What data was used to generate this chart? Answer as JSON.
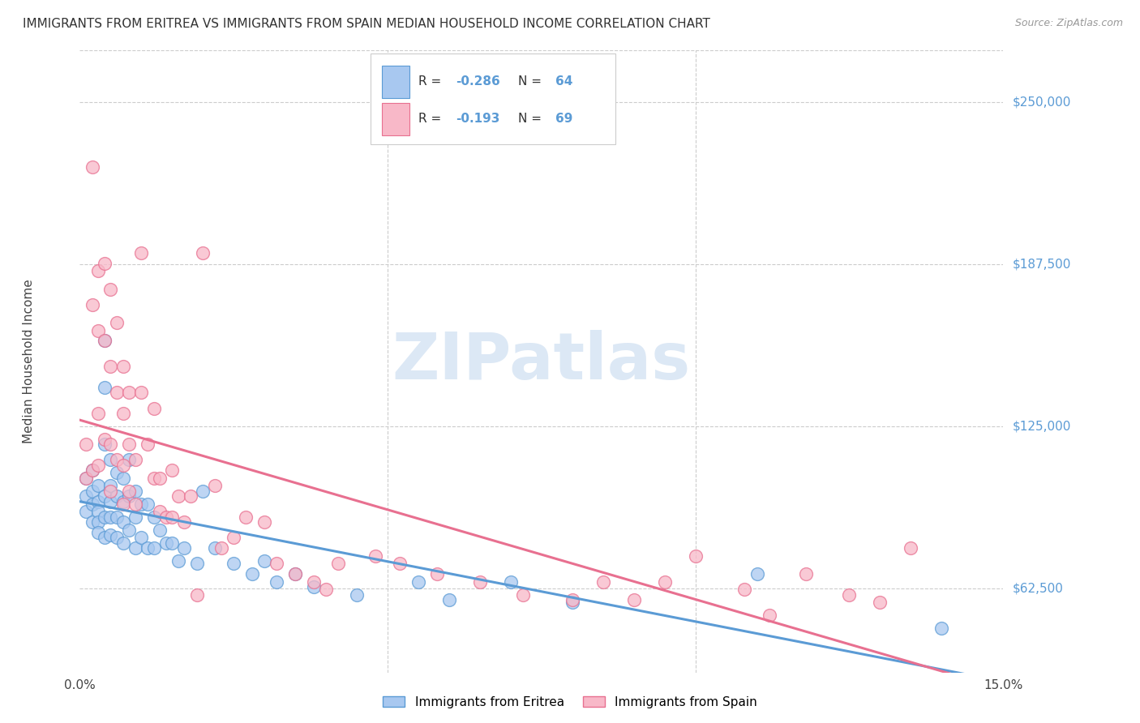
{
  "title": "IMMIGRANTS FROM ERITREA VS IMMIGRANTS FROM SPAIN MEDIAN HOUSEHOLD INCOME CORRELATION CHART",
  "source": "Source: ZipAtlas.com",
  "ylabel": "Median Household Income",
  "yticks": [
    62500,
    125000,
    187500,
    250000
  ],
  "ytick_labels": [
    "$62,500",
    "$125,000",
    "$187,500",
    "$250,000"
  ],
  "xlim": [
    0.0,
    0.15
  ],
  "ylim": [
    30000,
    270000
  ],
  "color_eritrea_fill": "#a8c8f0",
  "color_eritrea_edge": "#5b9bd5",
  "color_eritrea_line": "#5b9bd5",
  "color_spain_fill": "#f8b8c8",
  "color_spain_edge": "#e87090",
  "color_spain_line": "#e87090",
  "color_blue_text": "#5b9bd5",
  "color_grid": "#cccccc",
  "watermark_color": "#dce8f5",
  "eritrea_x": [
    0.001,
    0.001,
    0.001,
    0.002,
    0.002,
    0.002,
    0.002,
    0.003,
    0.003,
    0.003,
    0.003,
    0.003,
    0.004,
    0.004,
    0.004,
    0.004,
    0.004,
    0.004,
    0.005,
    0.005,
    0.005,
    0.005,
    0.005,
    0.006,
    0.006,
    0.006,
    0.006,
    0.007,
    0.007,
    0.007,
    0.007,
    0.008,
    0.008,
    0.008,
    0.009,
    0.009,
    0.009,
    0.01,
    0.01,
    0.011,
    0.011,
    0.012,
    0.012,
    0.013,
    0.014,
    0.015,
    0.016,
    0.017,
    0.019,
    0.02,
    0.022,
    0.025,
    0.028,
    0.03,
    0.032,
    0.035,
    0.038,
    0.045,
    0.055,
    0.06,
    0.07,
    0.08,
    0.11,
    0.14
  ],
  "eritrea_y": [
    105000,
    98000,
    92000,
    108000,
    100000,
    95000,
    88000,
    102000,
    96000,
    92000,
    88000,
    84000,
    158000,
    140000,
    118000,
    98000,
    90000,
    82000,
    112000,
    102000,
    96000,
    90000,
    83000,
    107000,
    98000,
    90000,
    82000,
    105000,
    96000,
    88000,
    80000,
    112000,
    98000,
    85000,
    100000,
    90000,
    78000,
    95000,
    82000,
    95000,
    78000,
    90000,
    78000,
    85000,
    80000,
    80000,
    73000,
    78000,
    72000,
    100000,
    78000,
    72000,
    68000,
    73000,
    65000,
    68000,
    63000,
    60000,
    65000,
    58000,
    65000,
    57000,
    68000,
    47000
  ],
  "spain_x": [
    0.001,
    0.001,
    0.002,
    0.002,
    0.002,
    0.003,
    0.003,
    0.003,
    0.003,
    0.004,
    0.004,
    0.004,
    0.005,
    0.005,
    0.005,
    0.005,
    0.006,
    0.006,
    0.006,
    0.007,
    0.007,
    0.007,
    0.007,
    0.008,
    0.008,
    0.008,
    0.009,
    0.009,
    0.01,
    0.01,
    0.011,
    0.012,
    0.012,
    0.013,
    0.013,
    0.014,
    0.015,
    0.015,
    0.016,
    0.017,
    0.018,
    0.019,
    0.02,
    0.022,
    0.023,
    0.025,
    0.027,
    0.03,
    0.032,
    0.035,
    0.038,
    0.04,
    0.042,
    0.048,
    0.052,
    0.058,
    0.065,
    0.072,
    0.08,
    0.085,
    0.09,
    0.095,
    0.1,
    0.108,
    0.112,
    0.118,
    0.125,
    0.13,
    0.135
  ],
  "spain_y": [
    118000,
    105000,
    225000,
    172000,
    108000,
    185000,
    162000,
    130000,
    110000,
    188000,
    158000,
    120000,
    178000,
    148000,
    118000,
    100000,
    165000,
    138000,
    112000,
    148000,
    130000,
    110000,
    95000,
    138000,
    118000,
    100000,
    112000,
    95000,
    192000,
    138000,
    118000,
    132000,
    105000,
    105000,
    92000,
    90000,
    108000,
    90000,
    98000,
    88000,
    98000,
    60000,
    192000,
    102000,
    78000,
    82000,
    90000,
    88000,
    72000,
    68000,
    65000,
    62000,
    72000,
    75000,
    72000,
    68000,
    65000,
    60000,
    58000,
    65000,
    58000,
    65000,
    75000,
    62000,
    52000,
    68000,
    60000,
    57000,
    78000
  ]
}
